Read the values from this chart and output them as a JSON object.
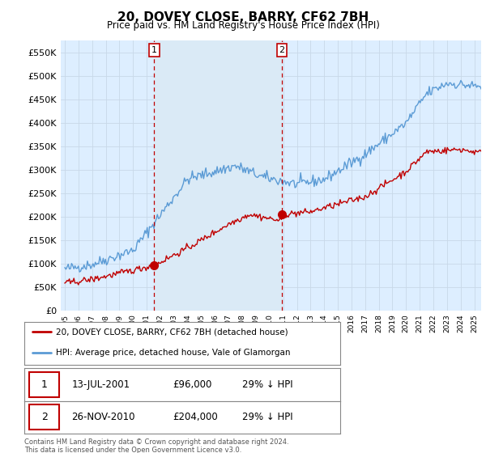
{
  "title": "20, DOVEY CLOSE, BARRY, CF62 7BH",
  "subtitle": "Price paid vs. HM Land Registry's House Price Index (HPI)",
  "y_ticks": [
    0,
    50000,
    100000,
    150000,
    200000,
    250000,
    300000,
    350000,
    400000,
    450000,
    500000,
    550000
  ],
  "y_tick_labels": [
    "£0",
    "£50K",
    "£100K",
    "£150K",
    "£200K",
    "£250K",
    "£300K",
    "£350K",
    "£400K",
    "£450K",
    "£500K",
    "£550K"
  ],
  "y_min": 0,
  "y_max": 575000,
  "sale1_year": 2001.54,
  "sale1_price": 96000,
  "sale2_year": 2010.9,
  "sale2_price": 204000,
  "hpi_color": "#5b9bd5",
  "price_color": "#c00000",
  "shade_color": "#daeaf6",
  "legend1": "20, DOVEY CLOSE, BARRY, CF62 7BH (detached house)",
  "legend2": "HPI: Average price, detached house, Vale of Glamorgan",
  "sale1_date": "13-JUL-2001",
  "sale1_amount": "£96,000",
  "sale1_pct": "29% ↓ HPI",
  "sale2_date": "26-NOV-2010",
  "sale2_amount": "£204,000",
  "sale2_pct": "29% ↓ HPI",
  "footnote": "Contains HM Land Registry data © Crown copyright and database right 2024.\nThis data is licensed under the Open Government Licence v3.0.",
  "grid_color": "#c8d8e8",
  "bg_color": "#ffffff",
  "plot_bg_color": "#ddeeff"
}
